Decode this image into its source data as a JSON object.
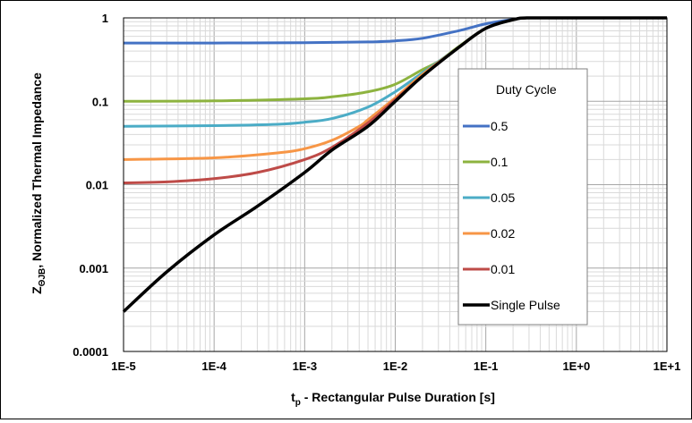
{
  "chart_data": {
    "type": "line",
    "xlabel_main": "t",
    "xlabel_sub": "p",
    "xlabel_rest": " -  Rectangular Pulse Duration [s]",
    "ylabel_main": "Z",
    "ylabel_sub": "ΘJB",
    "ylabel_rest": ", Normalized Thermal Impedance",
    "x_scale": "log",
    "y_scale": "log",
    "xlim": [
      1e-05,
      10
    ],
    "ylim": [
      0.0001,
      1
    ],
    "x_tick_labels": [
      "1E-5",
      "1E-4",
      "1E-3",
      "1E-2",
      "1E-1",
      "1E+0",
      "1E+1"
    ],
    "y_tick_labels": [
      "1",
      "0.1",
      "0.01",
      "0.001",
      "0.0001"
    ],
    "grid": true,
    "legend": {
      "title": "Duty Cycle",
      "placement": "right",
      "entries": [
        "0.5",
        "0.1",
        "0.05",
        "0.02",
        "0.01",
        "Single Pulse"
      ]
    },
    "colors": [
      "#4472c4",
      "#8db33f",
      "#4bacc6",
      "#f79646",
      "#be4b48",
      "#000000"
    ],
    "series": [
      {
        "name": "0.5",
        "x": [
          1e-05,
          0.0001,
          0.001,
          0.005,
          0.01,
          0.02,
          0.05,
          0.1,
          0.2,
          0.3,
          1,
          10
        ],
        "y": [
          0.5,
          0.5,
          0.505,
          0.515,
          0.53,
          0.57,
          0.7,
          0.85,
          0.96,
          1.0,
          1.0,
          1.0
        ]
      },
      {
        "name": "0.1",
        "x": [
          1e-05,
          0.0001,
          0.001,
          0.002,
          0.005,
          0.01,
          0.02,
          0.03,
          0.05,
          0.1,
          0.2,
          0.3,
          1,
          10
        ],
        "y": [
          0.1,
          0.101,
          0.107,
          0.113,
          0.13,
          0.16,
          0.24,
          0.3,
          0.45,
          0.75,
          0.95,
          1.0,
          1.0,
          1.0
        ]
      },
      {
        "name": "0.05",
        "x": [
          1e-05,
          0.0001,
          0.0005,
          0.001,
          0.002,
          0.005,
          0.01,
          0.02,
          0.05,
          0.1,
          0.2,
          0.3,
          1,
          10
        ],
        "y": [
          0.05,
          0.051,
          0.053,
          0.056,
          0.062,
          0.085,
          0.13,
          0.22,
          0.44,
          0.75,
          0.95,
          1.0,
          1.0,
          1.0
        ]
      },
      {
        "name": "0.02",
        "x": [
          1e-05,
          0.0001,
          0.0005,
          0.001,
          0.002,
          0.004,
          0.005,
          0.01,
          0.02,
          0.05,
          0.1,
          0.2,
          0.3,
          1,
          10
        ],
        "y": [
          0.02,
          0.021,
          0.024,
          0.027,
          0.034,
          0.05,
          0.06,
          0.11,
          0.21,
          0.44,
          0.75,
          0.95,
          1.0,
          1.0,
          1.0
        ]
      },
      {
        "name": "0.01",
        "x": [
          1e-05,
          3e-05,
          0.0001,
          0.0003,
          0.001,
          0.002,
          0.005,
          0.01,
          0.02,
          0.05,
          0.1,
          0.2,
          0.3,
          1,
          10
        ],
        "y": [
          0.0105,
          0.0108,
          0.0118,
          0.014,
          0.02,
          0.028,
          0.055,
          0.105,
          0.2,
          0.44,
          0.75,
          0.95,
          1.0,
          1.0,
          1.0
        ]
      },
      {
        "name": "Single Pulse",
        "x": [
          1e-05,
          3e-05,
          0.0001,
          0.0003,
          0.001,
          0.002,
          0.005,
          0.01,
          0.02,
          0.05,
          0.1,
          0.2,
          0.3,
          1,
          10
        ],
        "y": [
          0.0003,
          0.0009,
          0.0025,
          0.0055,
          0.014,
          0.026,
          0.05,
          0.1,
          0.2,
          0.44,
          0.75,
          0.95,
          1.0,
          1.0,
          1.0
        ]
      }
    ]
  }
}
